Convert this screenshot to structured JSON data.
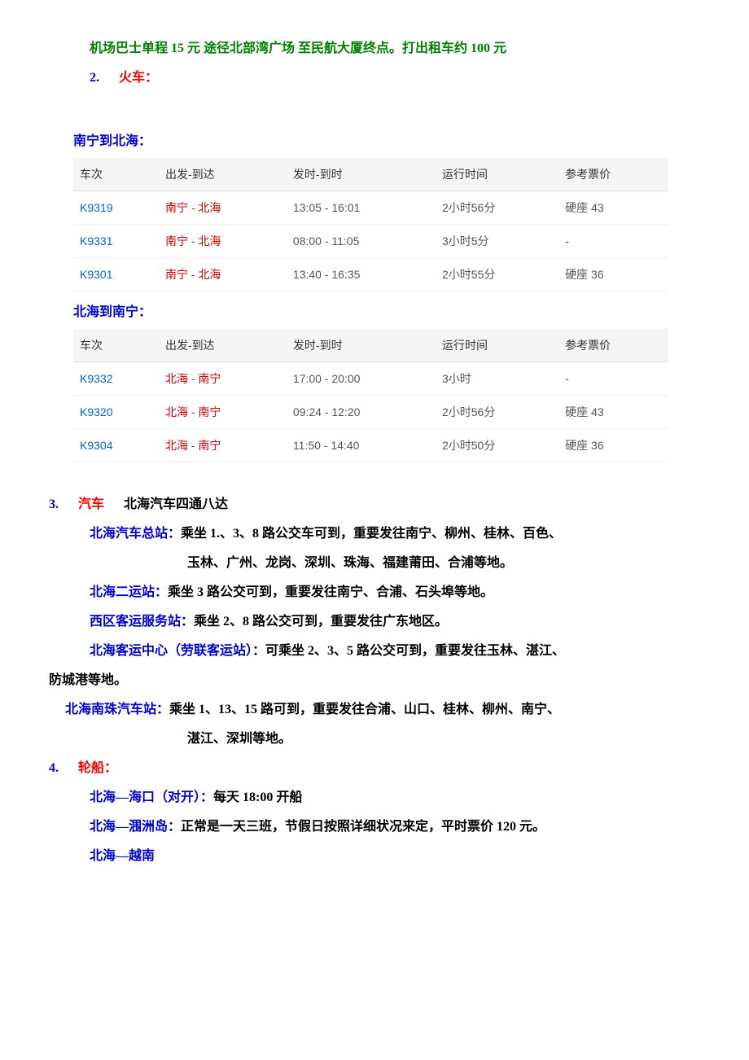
{
  "line_airport": "机场巴士单程 15 元 途径北部湾广场 至民航大厦终点。打出租车约 100 元",
  "sec2_num": "2.",
  "sec2_title": "火车：",
  "table1_title": "南宁到北海：",
  "table2_title": "北海到南宁：",
  "th": {
    "c1": "车次",
    "c2": "出发-到达",
    "c3": "发时-到时",
    "c4": "运行时间",
    "c5": "参考票价"
  },
  "t1": [
    {
      "no": "K9319",
      "from": "南宁",
      "to": "北海",
      "time": "13:05 - 16:01",
      "dur": "2小时56分",
      "price": "硬座 43"
    },
    {
      "no": "K9331",
      "from": "南宁",
      "to": "北海",
      "time": "08:00 - 11:05",
      "dur": "3小时5分",
      "price": "-"
    },
    {
      "no": "K9301",
      "from": "南宁",
      "to": "北海",
      "time": "13:40 - 16:35",
      "dur": "2小时55分",
      "price": "硬座 36"
    }
  ],
  "t2": [
    {
      "no": "K9332",
      "from": "北海",
      "to": "南宁",
      "time": "17:00 - 20:00",
      "dur": "3小时",
      "price": "-"
    },
    {
      "no": "K9320",
      "from": "北海",
      "to": "南宁",
      "time": "09:24 - 12:20",
      "dur": "2小时56分",
      "price": "硬座 43"
    },
    {
      "no": "K9304",
      "from": "北海",
      "to": "南宁",
      "time": "11:50 - 14:40",
      "dur": "2小时50分",
      "price": "硬座 36"
    }
  ],
  "sec3_num": "3.",
  "sec3_title": "汽车",
  "sec3_sub": "北海汽车四通八达",
  "bus1_label": "北海汽车总站：",
  "bus1_text": "乘坐 1.、3、8 路公交车可到，重要发往南宁、柳州、桂林、百色、",
  "bus1_text2": "玉林、广州、龙岗、深圳、珠海、福建莆田、合浦等地。",
  "bus2_label": "北海二运站：",
  "bus2_text": "乘坐 3 路公交可到，重要发往南宁、合浦、石头埠等地。",
  "bus3_label": "西区客运服务站：",
  "bus3_text": "乘坐 2、8 路公交可到，重要发往广东地区。",
  "bus4_label": "北海客运中心（劳联客运站）：",
  "bus4_text": "可乘坐 2、3、5 路公交可到，重要发往玉林、湛江、",
  "bus4_text2": "防城港等地。",
  "bus5_label": "北海南珠汽车站：",
  "bus5_text": "乘坐 1、13、15 路可到，重要发往合浦、山口、桂林、柳州、南宁、",
  "bus5_text2": "湛江、深圳等地。",
  "sec4_num": "4.",
  "sec4_title": "轮船：",
  "ship1_label": "北海—海口（对开）：",
  "ship1_text": "每天 18:00 开船",
  "ship2_label": "北海—涠洲岛：",
  "ship2_text": "正常是一天三班，节假日按照详细状况来定，平时票价 120 元。",
  "ship3_label": "北海—越南"
}
